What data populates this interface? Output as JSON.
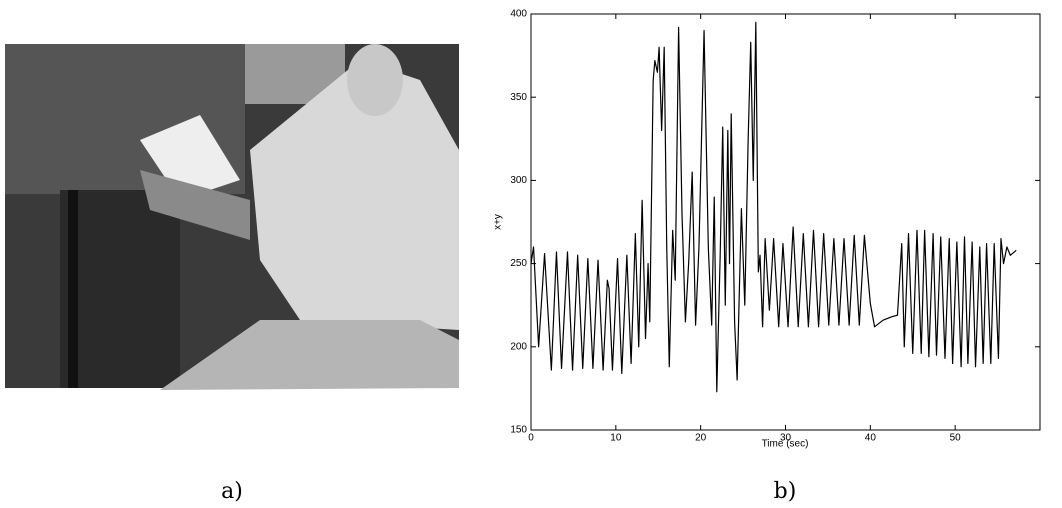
{
  "chart_data": {
    "type": "line",
    "xlabel": "Time (sec)",
    "ylabel": "x+y",
    "xlim": [
      0,
      60
    ],
    "ylim": [
      150,
      400
    ],
    "xticks": [
      0,
      10,
      20,
      30,
      40,
      50
    ],
    "yticks": [
      150,
      200,
      250,
      300,
      350,
      400
    ],
    "color": "#000000",
    "x": [
      0,
      0.3,
      0.9,
      1.6,
      2.4,
      3.0,
      3.6,
      4.3,
      4.9,
      5.5,
      6.1,
      6.7,
      7.3,
      7.9,
      8.5,
      9.0,
      9.2,
      9.6,
      10.2,
      10.7,
      11.3,
      11.8,
      12.3,
      12.7,
      13.1,
      13.5,
      13.8,
      14.0,
      14.4,
      14.6,
      14.9,
      15.1,
      15.4,
      15.7,
      16.0,
      16.3,
      16.7,
      17.0,
      17.4,
      17.8,
      18.2,
      18.6,
      19.0,
      19.4,
      19.8,
      20.4,
      20.9,
      21.3,
      21.6,
      21.9,
      22.3,
      22.6,
      22.9,
      23.2,
      23.4,
      23.6,
      24.0,
      24.3,
      24.8,
      25.2,
      25.6,
      25.9,
      26.2,
      26.5,
      26.8,
      27.0,
      27.3,
      27.6,
      28.1,
      28.6,
      29.2,
      29.7,
      30.3,
      30.9,
      31.5,
      32.1,
      32.7,
      33.3,
      33.9,
      34.5,
      35.1,
      35.7,
      36.3,
      36.9,
      37.5,
      38.1,
      38.7,
      39.3,
      40.0,
      40.5,
      41.5,
      42.5,
      43.2,
      43.7,
      44.0,
      44.5,
      45.0,
      45.5,
      46.0,
      46.4,
      46.9,
      47.4,
      47.8,
      48.3,
      48.8,
      49.3,
      49.7,
      50.2,
      50.7,
      51.1,
      51.5,
      52.0,
      52.4,
      52.9,
      53.3,
      53.7,
      54.2,
      54.6,
      55.1,
      55.4,
      55.7,
      56.1,
      56.5,
      57.2
    ],
    "values": [
      250,
      260,
      200,
      256,
      186,
      257,
      187,
      257,
      186,
      255,
      187,
      253,
      187,
      252,
      186,
      240,
      235,
      186,
      253,
      184,
      255,
      190,
      268,
      200,
      288,
      205,
      250,
      215,
      360,
      372,
      365,
      380,
      330,
      380,
      260,
      188,
      270,
      240,
      392,
      280,
      215,
      252,
      305,
      213,
      260,
      390,
      260,
      213,
      290,
      173,
      255,
      332,
      225,
      330,
      250,
      340,
      215,
      180,
      283,
      225,
      325,
      383,
      300,
      395,
      245,
      255,
      212,
      265,
      222,
      265,
      212,
      262,
      212,
      272,
      212,
      268,
      212,
      270,
      212,
      268,
      213,
      265,
      213,
      265,
      213,
      267,
      213,
      267,
      226,
      212,
      216,
      218,
      219,
      262,
      200,
      268,
      196,
      270,
      196,
      270,
      194,
      268,
      195,
      266,
      193,
      265,
      190,
      263,
      188,
      266,
      190,
      263,
      188,
      260,
      190,
      262,
      190,
      262,
      193,
      265,
      250,
      260,
      255,
      258
    ]
  },
  "captions": [
    "a)",
    "b)"
  ]
}
